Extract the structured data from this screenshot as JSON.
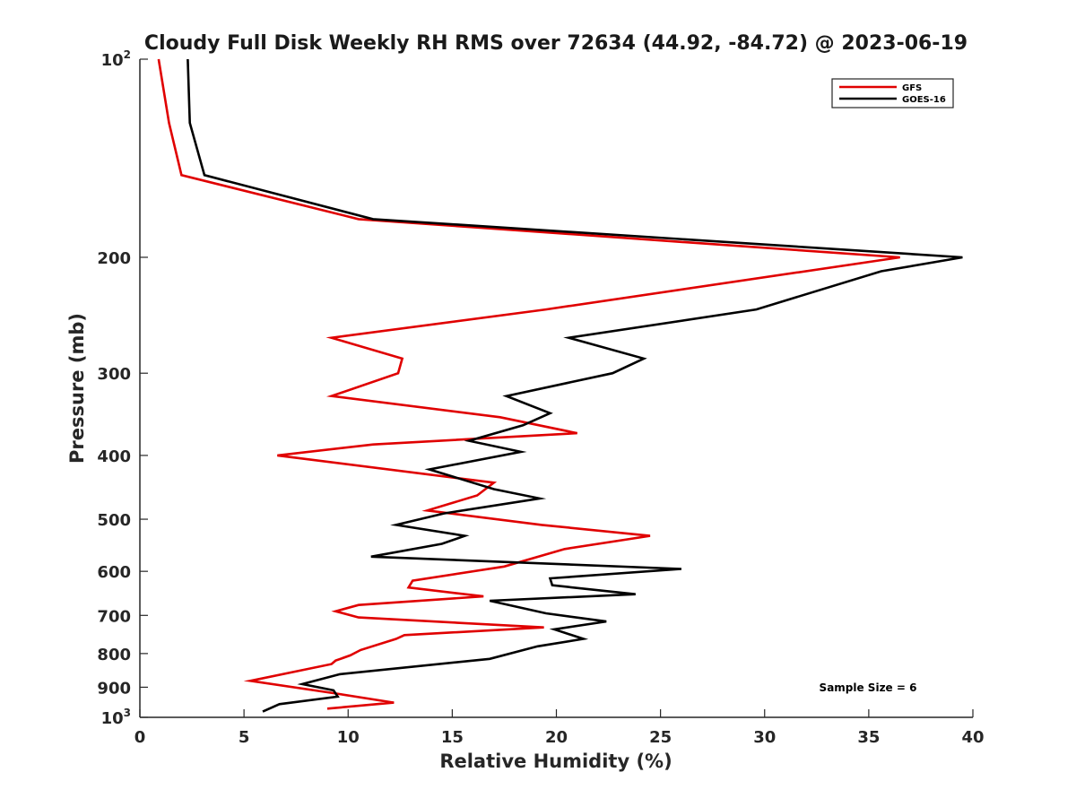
{
  "chart_data": {
    "type": "line",
    "title": "Cloudy Full Disk Weekly RH RMS over 72634 (44.92, -84.72) @ 2023-06-19",
    "xlabel": "Relative Humidity (%)",
    "ylabel": "Pressure (mb)",
    "xlim": [
      0,
      40
    ],
    "ylim": [
      100,
      1000
    ],
    "yscale": "log",
    "y_reversed": true,
    "x_ticks": [
      0,
      5,
      10,
      15,
      20,
      25,
      30,
      35,
      40
    ],
    "y_ticks": [
      {
        "value": 100,
        "label": "10",
        "exp": "2"
      },
      {
        "value": 200,
        "label": "200"
      },
      {
        "value": 300,
        "label": "300"
      },
      {
        "value": 400,
        "label": "400"
      },
      {
        "value": 500,
        "label": "500"
      },
      {
        "value": 600,
        "label": "600"
      },
      {
        "value": 700,
        "label": "700"
      },
      {
        "value": 800,
        "label": "800"
      },
      {
        "value": 900,
        "label": "900"
      },
      {
        "value": 1000,
        "label": "10",
        "exp": "3"
      }
    ],
    "grid": false,
    "legend": "top-right",
    "annotation": "Sample Size = 6",
    "series": [
      {
        "name": "GFS",
        "color": "#e00000",
        "points": [
          [
            0.9,
            100
          ],
          [
            1.4,
            125
          ],
          [
            2.0,
            150
          ],
          [
            10.5,
            175
          ],
          [
            36.5,
            200
          ],
          [
            19.5,
            240
          ],
          [
            9.2,
            265
          ],
          [
            12.6,
            285
          ],
          [
            12.4,
            300
          ],
          [
            9.2,
            325
          ],
          [
            17.3,
            350
          ],
          [
            21.0,
            370
          ],
          [
            11.2,
            385
          ],
          [
            6.6,
            400
          ],
          [
            17.0,
            440
          ],
          [
            16.2,
            460
          ],
          [
            13.8,
            485
          ],
          [
            19.3,
            510
          ],
          [
            24.5,
            530
          ],
          [
            20.4,
            555
          ],
          [
            17.5,
            590
          ],
          [
            13.1,
            620
          ],
          [
            12.9,
            635
          ],
          [
            16.5,
            655
          ],
          [
            10.5,
            675
          ],
          [
            9.4,
            690
          ],
          [
            10.5,
            705
          ],
          [
            19.4,
            730
          ],
          [
            12.7,
            750
          ],
          [
            12.3,
            760
          ],
          [
            10.6,
            790
          ],
          [
            10.1,
            805
          ],
          [
            9.4,
            820
          ],
          [
            9.2,
            830
          ],
          [
            5.3,
            880
          ],
          [
            9.4,
            920
          ],
          [
            12.2,
            950
          ],
          [
            9.0,
            970
          ]
        ]
      },
      {
        "name": "GOES-16",
        "color": "#000000",
        "points": [
          [
            2.3,
            100
          ],
          [
            2.4,
            125
          ],
          [
            3.1,
            150
          ],
          [
            11.2,
            175
          ],
          [
            39.5,
            200
          ],
          [
            35.6,
            210
          ],
          [
            29.6,
            240
          ],
          [
            20.6,
            265
          ],
          [
            24.2,
            285
          ],
          [
            22.7,
            300
          ],
          [
            17.6,
            325
          ],
          [
            19.7,
            345
          ],
          [
            18.4,
            360
          ],
          [
            15.8,
            380
          ],
          [
            18.3,
            395
          ],
          [
            13.9,
            420
          ],
          [
            17.0,
            450
          ],
          [
            19.2,
            465
          ],
          [
            14.6,
            490
          ],
          [
            12.3,
            510
          ],
          [
            15.6,
            530
          ],
          [
            14.5,
            545
          ],
          [
            11.1,
            570
          ],
          [
            26.0,
            595
          ],
          [
            19.7,
            615
          ],
          [
            19.8,
            630
          ],
          [
            23.8,
            650
          ],
          [
            16.8,
            665
          ],
          [
            19.5,
            695
          ],
          [
            22.4,
            715
          ],
          [
            19.9,
            735
          ],
          [
            21.3,
            760
          ],
          [
            19.1,
            780
          ],
          [
            16.8,
            815
          ],
          [
            9.6,
            860
          ],
          [
            7.8,
            890
          ],
          [
            9.3,
            910
          ],
          [
            9.5,
            930
          ],
          [
            6.7,
            955
          ],
          [
            5.9,
            980
          ]
        ]
      }
    ]
  }
}
